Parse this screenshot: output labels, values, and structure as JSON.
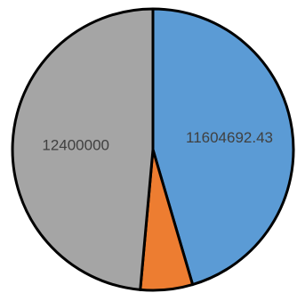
{
  "chart_data": {
    "type": "pie",
    "slices": [
      {
        "value": 11604692.43,
        "label": "11604692.43",
        "color": "#5B9BD5"
      },
      {
        "value": 1531110,
        "label": "",
        "color": "#ED7D31"
      },
      {
        "value": 12400000,
        "label": "12400000",
        "color": "#A5A5A5"
      }
    ],
    "start_angle_deg": 0,
    "direction": "clockwise",
    "title": "",
    "legend": "none"
  }
}
